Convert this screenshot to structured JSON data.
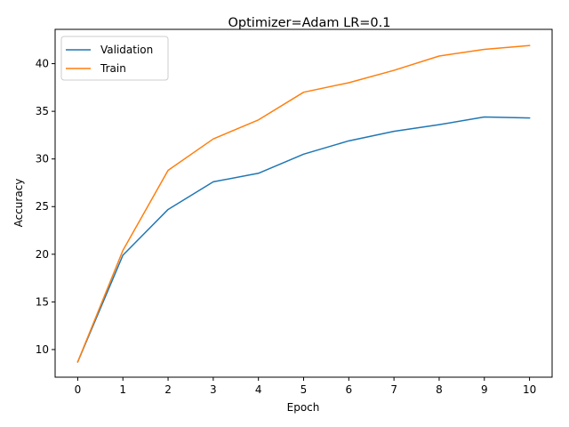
{
  "chart_data": {
    "type": "line",
    "title": "Optimizer=Adam LR=0.1",
    "xlabel": "Epoch",
    "ylabel": "Accuracy",
    "x": [
      0,
      1,
      2,
      3,
      4,
      5,
      6,
      7,
      8,
      9,
      10
    ],
    "xlim": [
      -0.5,
      10.5
    ],
    "ylim": [
      7.1,
      43.6
    ],
    "xticks": [
      0,
      1,
      2,
      3,
      4,
      5,
      6,
      7,
      8,
      9,
      10
    ],
    "yticks": [
      10,
      15,
      20,
      25,
      30,
      35,
      40
    ],
    "grid": false,
    "legend_position": "top-left",
    "series": [
      {
        "name": "Validation",
        "color": "#1f77b4",
        "values": [
          8.7,
          19.9,
          24.7,
          27.6,
          28.5,
          30.5,
          31.9,
          32.9,
          33.6,
          34.4,
          34.3
        ]
      },
      {
        "name": "Train",
        "color": "#ff7f0e",
        "values": [
          8.7,
          20.4,
          28.8,
          32.1,
          34.1,
          37.0,
          38.0,
          39.3,
          40.8,
          41.5,
          41.9
        ]
      }
    ]
  }
}
